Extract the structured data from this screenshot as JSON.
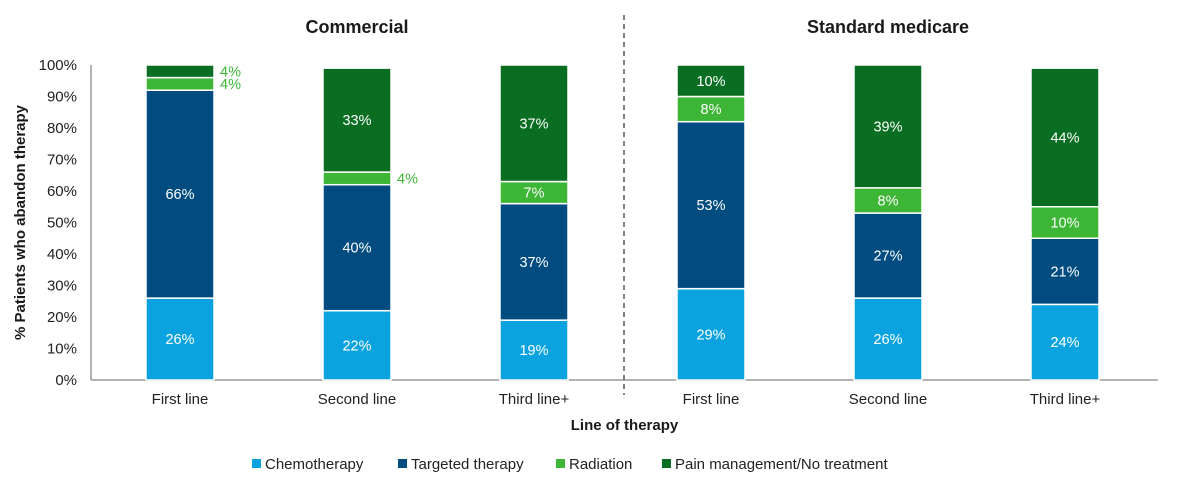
{
  "chart_data": {
    "type": "bar",
    "stacked": true,
    "groups": [
      {
        "title": "Commercial",
        "categories": [
          "First line",
          "Second line",
          "Third line+"
        ],
        "series": [
          {
            "name": "Chemotherapy",
            "values": [
              26,
              22,
              19
            ],
            "labels": [
              "26%",
              "22%",
              "19%"
            ]
          },
          {
            "name": "Targeted therapy",
            "values": [
              66,
              40,
              37
            ],
            "labels": [
              "66%",
              "40%",
              "37%"
            ]
          },
          {
            "name": "Radiation",
            "values": [
              4,
              4,
              7
            ],
            "labels": [
              "4%",
              "4%",
              "7%"
            ]
          },
          {
            "name": "Pain management/No treatment",
            "values": [
              4,
              33,
              37
            ],
            "labels": [
              "4%",
              "33%",
              "37%"
            ]
          }
        ]
      },
      {
        "title": "Standard medicare",
        "categories": [
          "First line",
          "Second line",
          "Third line+"
        ],
        "series": [
          {
            "name": "Chemotherapy",
            "values": [
              29,
              26,
              24
            ],
            "labels": [
              "29%",
              "26%",
              "24%"
            ]
          },
          {
            "name": "Targeted therapy",
            "values": [
              53,
              27,
              21
            ],
            "labels": [
              "53%",
              "27%",
              "21%"
            ]
          },
          {
            "name": "Radiation",
            "values": [
              8,
              8,
              10
            ],
            "labels": [
              "8%",
              "8%",
              "10%"
            ]
          },
          {
            "name": "Pain management/No treatment",
            "values": [
              10,
              39,
              44
            ],
            "labels": [
              "10%",
              "39%",
              "44%"
            ]
          }
        ]
      }
    ],
    "ylabel": "% Patients who abandon therapy",
    "xlabel": "Line of therapy",
    "ylim": [
      0,
      100
    ],
    "yticks": [
      "0%",
      "10%",
      "20%",
      "30%",
      "40%",
      "50%",
      "60%",
      "70%",
      "80%",
      "90%",
      "100%"
    ],
    "legend": {
      "position": "bottom",
      "items": [
        "Chemotherapy",
        "Targeted therapy",
        "Radiation",
        "Pain management/No treatment"
      ]
    },
    "colors": {
      "Chemotherapy": "#0aa3e0",
      "Targeted therapy": "#004c80",
      "Radiation": "#3db535",
      "Pain management/No treatment": "#0a6e22"
    },
    "outside_labels": [
      "4%",
      "4%",
      "4%"
    ],
    "grid": false
  }
}
